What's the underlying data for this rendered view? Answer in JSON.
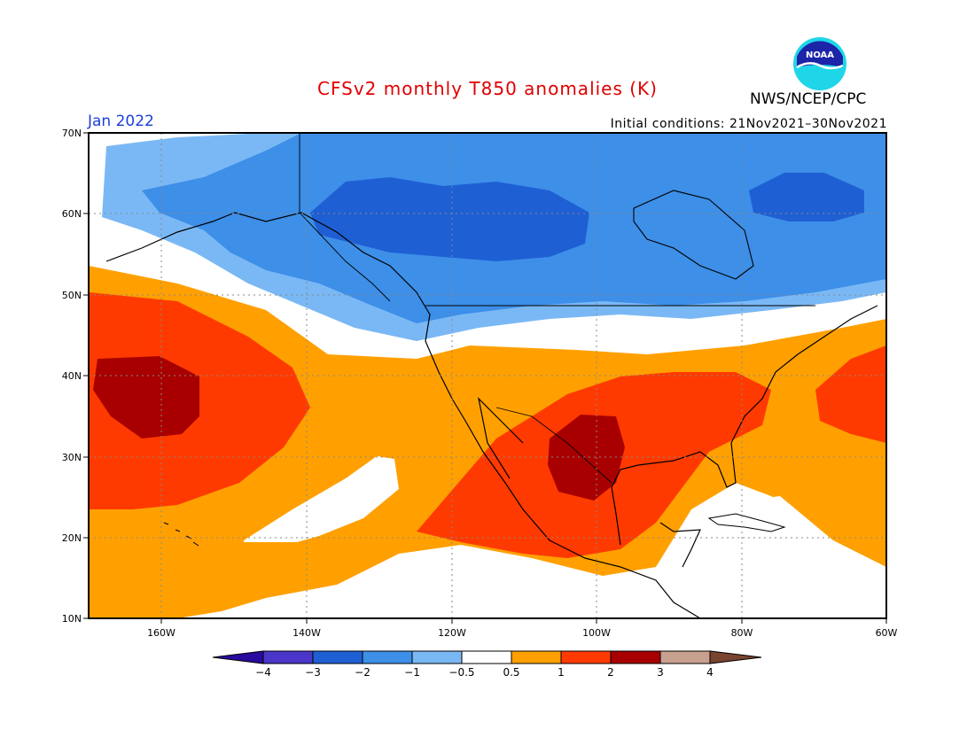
{
  "title": "CFSv2 monthly T850 anomalies (K)",
  "agency": "NWS/NCEP/CPC",
  "logo_text": "NOAA",
  "month_label": "Jan 2022",
  "initial_conditions": "Initial conditions: 21Nov2021–30Nov2021",
  "map": {
    "lat_labels": [
      "70N",
      "60N",
      "50N",
      "40N",
      "30N",
      "20N",
      "10N"
    ],
    "lon_labels": [
      "160W",
      "140W",
      "120W",
      "100W",
      "80W",
      "60W"
    ]
  },
  "colorbar": {
    "labels": [
      "−4",
      "−3",
      "−2",
      "−1",
      "−0.5",
      "0.5",
      "1",
      "2",
      "3",
      "4"
    ],
    "colors": [
      "#2a0a9e",
      "#4a36c8",
      "#1f5fd4",
      "#3d8fe8",
      "#7ab8f5",
      "#ffffff",
      "#ffa000",
      "#ff3a00",
      "#a80000",
      "#c8a090",
      "#7a4530"
    ]
  }
}
